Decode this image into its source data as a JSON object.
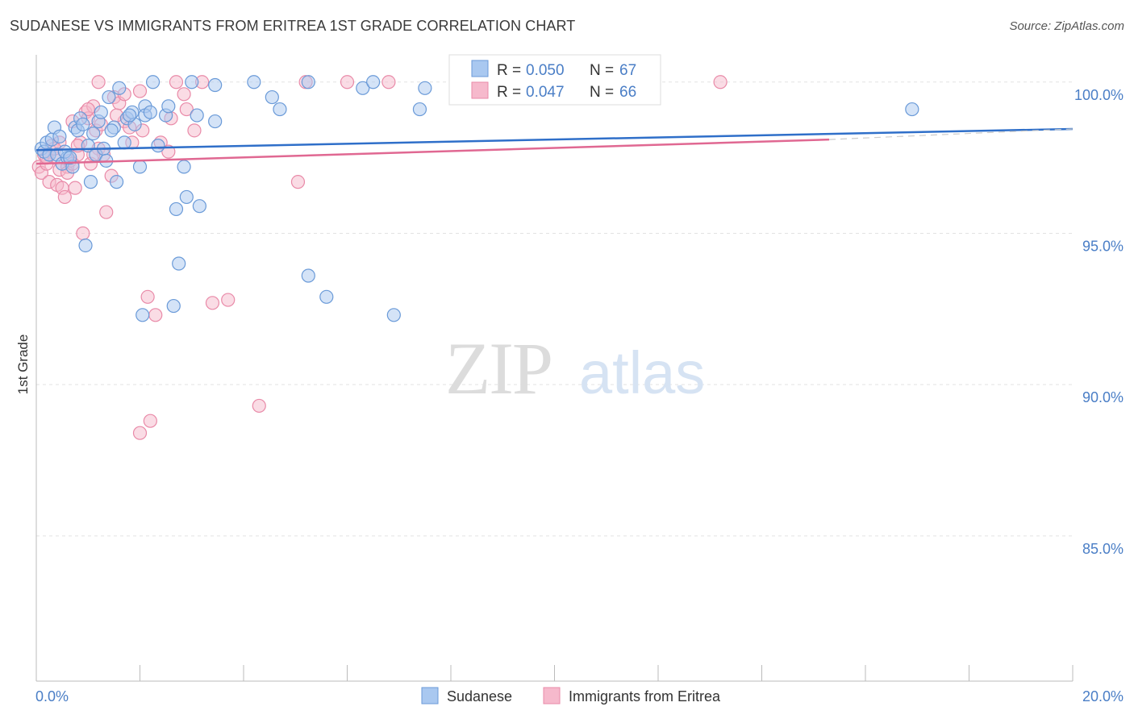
{
  "title": "SUDANESE VS IMMIGRANTS FROM ERITREA 1ST GRADE CORRELATION CHART",
  "source": "Source: ZipAtlas.com",
  "watermark": {
    "zip": "ZIP",
    "atlas": "atlas"
  },
  "colors": {
    "blue_fill": "#a9c8f0",
    "blue_stroke": "#6a9ad8",
    "blue_line": "#2f6fc9",
    "pink_fill": "#f6b9cc",
    "pink_stroke": "#e98aa8",
    "pink_line": "#e06892",
    "label_blue": "#4a7ec6"
  },
  "chart_data": {
    "type": "scatter",
    "title": "SUDANESE VS IMMIGRANTS FROM ERITREA 1ST GRADE CORRELATION CHART",
    "xlabel": "",
    "ylabel": "1st Grade",
    "xlim": [
      0,
      20
    ],
    "ylim": [
      80.2,
      100.9
    ],
    "x_tick_labels": [
      {
        "value": 0,
        "label": "0.0%"
      },
      {
        "value": 20,
        "label": "20.0%"
      }
    ],
    "y_tick_labels": [
      {
        "value": 100,
        "label": "100.0%"
      },
      {
        "value": 95,
        "label": "95.0%"
      },
      {
        "value": 90,
        "label": "90.0%"
      },
      {
        "value": 85,
        "label": "85.0%"
      }
    ],
    "grid": true,
    "legend_position": "top-center",
    "stats": [
      {
        "r_label": "R = ",
        "r_value": "0.050",
        "n_label": "N = ",
        "n_value": "67"
      },
      {
        "r_label": "R = ",
        "r_value": "0.047",
        "n_label": "N = ",
        "n_value": "66"
      }
    ],
    "series": [
      {
        "name": "Sudanese",
        "color": "#a9c8f0",
        "trend": {
          "x0": 0,
          "y0": 97.75,
          "x1": 20,
          "y1": 98.45
        },
        "points": [
          [
            0.1,
            97.8
          ],
          [
            0.15,
            97.7
          ],
          [
            0.2,
            98.0
          ],
          [
            0.25,
            97.6
          ],
          [
            0.3,
            98.1
          ],
          [
            0.35,
            98.5
          ],
          [
            0.4,
            97.6
          ],
          [
            0.45,
            98.2
          ],
          [
            0.5,
            97.3
          ],
          [
            0.6,
            97.5
          ],
          [
            0.7,
            97.2
          ],
          [
            0.75,
            98.5
          ],
          [
            0.8,
            98.4
          ],
          [
            0.85,
            98.8
          ],
          [
            0.9,
            98.6
          ],
          [
            1.0,
            97.9
          ],
          [
            1.05,
            96.7
          ],
          [
            1.1,
            98.3
          ],
          [
            1.15,
            97.6
          ],
          [
            1.2,
            98.7
          ],
          [
            1.25,
            99.0
          ],
          [
            1.3,
            97.8
          ],
          [
            1.35,
            97.4
          ],
          [
            1.4,
            99.5
          ],
          [
            1.5,
            98.5
          ],
          [
            1.55,
            96.7
          ],
          [
            1.6,
            99.8
          ],
          [
            1.7,
            98.0
          ],
          [
            1.75,
            98.8
          ],
          [
            1.85,
            99.0
          ],
          [
            1.9,
            98.6
          ],
          [
            2.0,
            97.2
          ],
          [
            2.1,
            99.2
          ],
          [
            2.1,
            98.9
          ],
          [
            2.2,
            99.0
          ],
          [
            2.25,
            100.0
          ],
          [
            2.35,
            97.9
          ],
          [
            2.5,
            98.9
          ],
          [
            2.55,
            99.2
          ],
          [
            2.7,
            95.8
          ],
          [
            2.75,
            94.0
          ],
          [
            2.9,
            96.2
          ],
          [
            3.0,
            100.0
          ],
          [
            3.1,
            98.9
          ],
          [
            3.15,
            95.9
          ],
          [
            3.45,
            98.7
          ],
          [
            4.2,
            100.0
          ],
          [
            4.55,
            99.5
          ],
          [
            4.7,
            99.1
          ],
          [
            5.25,
            100.0
          ],
          [
            5.25,
            93.6
          ],
          [
            5.6,
            92.9
          ],
          [
            6.3,
            99.8
          ],
          [
            6.5,
            100.0
          ],
          [
            6.9,
            92.3
          ],
          [
            7.4,
            99.1
          ],
          [
            7.5,
            99.8
          ],
          [
            16.9,
            99.1
          ],
          [
            0.95,
            94.6
          ],
          [
            2.05,
            92.3
          ],
          [
            2.65,
            92.6
          ],
          [
            1.8,
            98.9
          ],
          [
            3.45,
            99.9
          ],
          [
            0.55,
            97.7
          ],
          [
            0.65,
            97.5
          ],
          [
            1.45,
            98.4
          ],
          [
            2.85,
            97.2
          ]
        ]
      },
      {
        "name": "Immigrants from Eritrea",
        "color": "#f6b9cc",
        "trend": {
          "x0": 0,
          "y0": 97.3,
          "x1": 15.3,
          "y1": 98.1
        },
        "trend_dashed": {
          "x0": 15.3,
          "y0": 98.1,
          "x1": 20,
          "y1": 98.45
        },
        "points": [
          [
            0.05,
            97.2
          ],
          [
            0.1,
            97.0
          ],
          [
            0.15,
            97.6
          ],
          [
            0.2,
            97.3
          ],
          [
            0.25,
            96.7
          ],
          [
            0.3,
            97.9
          ],
          [
            0.35,
            97.5
          ],
          [
            0.4,
            96.6
          ],
          [
            0.45,
            97.1
          ],
          [
            0.5,
            96.5
          ],
          [
            0.55,
            96.2
          ],
          [
            0.6,
            97.2
          ],
          [
            0.65,
            97.4
          ],
          [
            0.7,
            98.7
          ],
          [
            0.75,
            96.5
          ],
          [
            0.8,
            97.6
          ],
          [
            0.85,
            98.0
          ],
          [
            0.9,
            95.0
          ],
          [
            0.95,
            99.0
          ],
          [
            1.0,
            98.8
          ],
          [
            1.05,
            97.3
          ],
          [
            1.1,
            99.2
          ],
          [
            1.15,
            98.4
          ],
          [
            1.2,
            97.8
          ],
          [
            1.25,
            98.6
          ],
          [
            1.3,
            97.6
          ],
          [
            1.35,
            95.7
          ],
          [
            1.45,
            96.9
          ],
          [
            1.5,
            99.5
          ],
          [
            1.6,
            99.3
          ],
          [
            1.7,
            98.7
          ],
          [
            1.8,
            98.5
          ],
          [
            2.0,
            99.7
          ],
          [
            2.05,
            98.4
          ],
          [
            2.15,
            92.9
          ],
          [
            2.3,
            92.3
          ],
          [
            1.7,
            99.6
          ],
          [
            2.4,
            98.0
          ],
          [
            2.7,
            100.0
          ],
          [
            2.85,
            99.6
          ],
          [
            2.9,
            99.1
          ],
          [
            3.2,
            100.0
          ],
          [
            3.4,
            92.7
          ],
          [
            3.7,
            92.8
          ],
          [
            4.3,
            89.3
          ],
          [
            5.05,
            96.7
          ],
          [
            5.2,
            100.0
          ],
          [
            6.0,
            100.0
          ],
          [
            6.8,
            100.0
          ],
          [
            13.2,
            100.0
          ],
          [
            2.0,
            88.4
          ],
          [
            2.2,
            88.8
          ],
          [
            1.2,
            100.0
          ],
          [
            0.6,
            97.0
          ],
          [
            1.0,
            99.1
          ],
          [
            0.45,
            98.0
          ],
          [
            0.8,
            97.9
          ],
          [
            1.55,
            98.9
          ],
          [
            3.05,
            98.4
          ],
          [
            2.55,
            97.7
          ],
          [
            0.2,
            97.5
          ],
          [
            0.35,
            97.8
          ],
          [
            1.85,
            98.0
          ],
          [
            1.1,
            97.6
          ],
          [
            0.7,
            97.3
          ],
          [
            2.6,
            98.8
          ]
        ]
      }
    ]
  }
}
